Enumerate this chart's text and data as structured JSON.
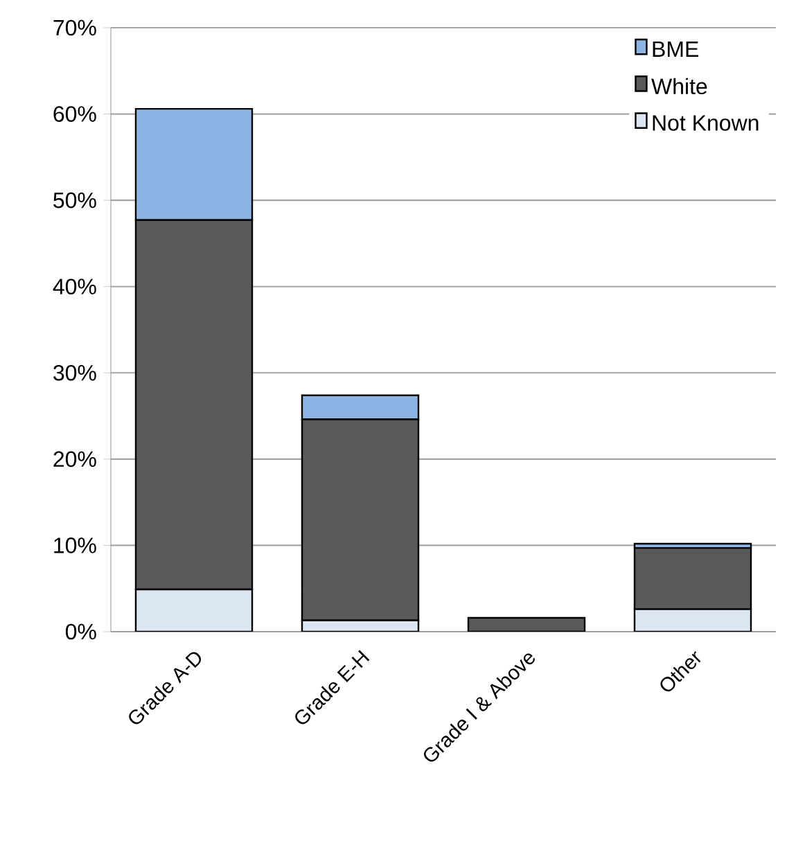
{
  "chart_data": {
    "type": "bar",
    "stacked": true,
    "categories": [
      "Grade A-D",
      "Grade E-H",
      "Grade I & Above",
      "Other"
    ],
    "series": [
      {
        "name": "Not Known",
        "color": "#dce6f2",
        "values": [
          4.9,
          1.3,
          null,
          2.6
        ]
      },
      {
        "name": "White",
        "color": "#595959",
        "values": [
          42.8,
          23.3,
          1.6,
          7.1
        ]
      },
      {
        "name": "BME",
        "color": "#8eb4e3",
        "values": [
          12.9,
          2.8,
          null,
          0.5
        ]
      }
    ],
    "ylim": [
      0,
      70
    ],
    "yticks": [
      {
        "value": 0,
        "label": "0%"
      },
      {
        "value": 10,
        "label": "10%"
      },
      {
        "value": 20,
        "label": "20%"
      },
      {
        "value": 30,
        "label": "30%"
      },
      {
        "value": 40,
        "label": "40%"
      },
      {
        "value": 50,
        "label": "50%"
      },
      {
        "value": 60,
        "label": "60%"
      },
      {
        "value": 70,
        "label": "70%"
      }
    ],
    "grid": "y",
    "legend": "top right"
  }
}
